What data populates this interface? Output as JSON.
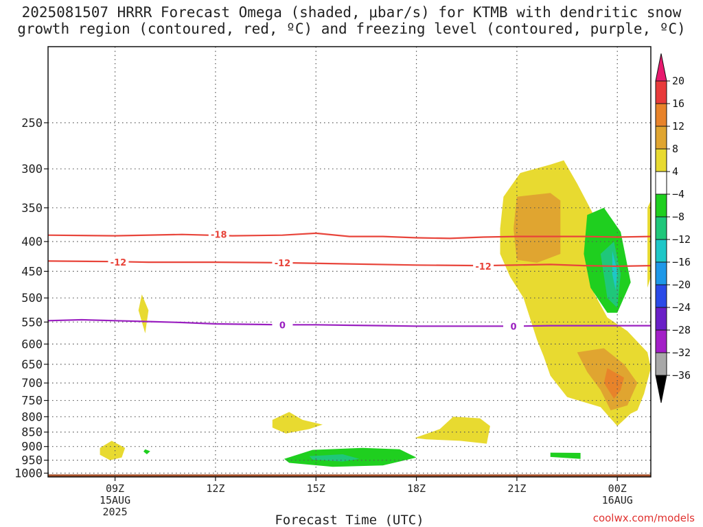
{
  "title_line1": "2025081507 HRRR Forecast Omega (shaded, μbar/s) for KTMB with dendritic snow",
  "title_line2": "growth region (contoured, red, ºC) and freezing level (contoured, purple, ºC)",
  "credit": "coolwx.com/models",
  "chart_data": {
    "type": "heatmap",
    "title": "2025081507 HRRR Forecast Omega (shaded, μbar/s) for KTMB with dendritic snow growth region (contoured, red, ºC) and freezing level (contoured, purple, ºC)",
    "xlabel": "Forecast Time (UTC)",
    "ylabel": "",
    "xlim_hours": [
      7,
      25
    ],
    "ylim_hpa": [
      1015,
      185
    ],
    "y_ticks": [
      250,
      300,
      350,
      400,
      450,
      500,
      550,
      600,
      650,
      700,
      750,
      800,
      850,
      900,
      950,
      1000
    ],
    "x_ticks": [
      {
        "hour": 9,
        "lines": [
          "09Z",
          "15AUG",
          "2025"
        ]
      },
      {
        "hour": 12,
        "lines": [
          "12Z"
        ]
      },
      {
        "hour": 15,
        "lines": [
          "15Z"
        ]
      },
      {
        "hour": 18,
        "lines": [
          "18Z"
        ]
      },
      {
        "hour": 21,
        "lines": [
          "21Z"
        ]
      },
      {
        "hour": 24,
        "lines": [
          "00Z",
          "16AUG"
        ]
      }
    ],
    "colorbar": {
      "labels": [
        "20",
        "16",
        "12",
        "8",
        "4",
        "−4",
        "−8",
        "−12",
        "−16",
        "−20",
        "−24",
        "−28",
        "−32",
        "−36"
      ],
      "colors": [
        "#e8196e",
        "#e83a3a",
        "#e8832a",
        "#e0a530",
        "#e8da30",
        "#ffffff",
        "#1fcf1f",
        "#1fc77a",
        "#1ec7c7",
        "#1e98e8",
        "#2a4ae8",
        "#6a1fc7",
        "#a31fc7",
        "#a8a8a8",
        "#000000"
      ]
    },
    "contours": [
      {
        "label": "-18",
        "color": "#e8443a",
        "points": [
          [
            7,
            390
          ],
          [
            9,
            391
          ],
          [
            11,
            389
          ],
          [
            12.5,
            391
          ],
          [
            14,
            390
          ],
          [
            15,
            387
          ],
          [
            16,
            392
          ],
          [
            17,
            392
          ],
          [
            18,
            394
          ],
          [
            19,
            395
          ],
          [
            20,
            393
          ],
          [
            21,
            392
          ],
          [
            22,
            392
          ],
          [
            23,
            392
          ],
          [
            24,
            393
          ],
          [
            25,
            392
          ]
        ],
        "label_at": [
          [
            12.1,
            389
          ]
        ]
      },
      {
        "label": "-12",
        "color": "#e8443a",
        "points": [
          [
            7,
            432
          ],
          [
            9,
            433
          ],
          [
            10,
            434
          ],
          [
            11,
            434
          ],
          [
            12,
            434
          ],
          [
            14,
            435
          ],
          [
            16,
            437
          ],
          [
            18,
            439
          ],
          [
            20,
            440
          ],
          [
            22,
            438
          ],
          [
            23,
            440
          ],
          [
            24,
            441
          ],
          [
            25,
            440
          ]
        ],
        "label_at": [
          [
            9.1,
            434
          ],
          [
            14.0,
            435
          ],
          [
            20.0,
            441
          ]
        ]
      },
      {
        "label": "0",
        "color": "#9a1fc0",
        "points": [
          [
            7,
            547
          ],
          [
            8,
            545
          ],
          [
            9,
            547
          ],
          [
            10,
            549
          ],
          [
            11,
            551
          ],
          [
            12,
            554
          ],
          [
            13,
            555
          ],
          [
            14,
            556
          ],
          [
            15,
            556
          ],
          [
            16,
            557
          ],
          [
            17,
            558
          ],
          [
            18,
            559
          ],
          [
            19,
            559
          ],
          [
            20,
            559
          ],
          [
            21,
            559
          ],
          [
            22,
            558
          ],
          [
            23,
            558
          ],
          [
            24,
            558
          ],
          [
            25,
            558
          ]
        ],
        "label_at": [
          [
            14.0,
            556
          ],
          [
            20.9,
            559
          ]
        ]
      }
    ],
    "shaded_regions": [
      {
        "omega": 4,
        "points": [
          [
            20.6,
            335
          ],
          [
            21.1,
            305
          ],
          [
            22.0,
            295
          ],
          [
            22.4,
            290
          ],
          [
            22.8,
            318
          ],
          [
            23.4,
            370
          ],
          [
            23.5,
            430
          ],
          [
            23.3,
            490
          ],
          [
            23.7,
            540
          ],
          [
            24.3,
            570
          ],
          [
            24.9,
            620
          ],
          [
            25.0,
            660
          ],
          [
            24.8,
            730
          ],
          [
            24.6,
            780
          ],
          [
            24.4,
            790
          ],
          [
            24.0,
            830
          ],
          [
            23.5,
            770
          ],
          [
            22.5,
            740
          ],
          [
            22.0,
            680
          ],
          [
            21.8,
            630
          ],
          [
            21.6,
            590
          ],
          [
            21.2,
            500
          ],
          [
            20.8,
            460
          ],
          [
            20.5,
            420
          ],
          [
            20.5,
            380
          ]
        ]
      },
      {
        "omega": 8,
        "points": [
          [
            21.0,
            335
          ],
          [
            22.0,
            330
          ],
          [
            22.3,
            340
          ],
          [
            22.3,
            420
          ],
          [
            21.6,
            435
          ],
          [
            21.0,
            430
          ],
          [
            20.9,
            380
          ]
        ]
      },
      {
        "omega": 8,
        "points": [
          [
            22.8,
            620
          ],
          [
            23.6,
            610
          ],
          [
            24.2,
            650
          ],
          [
            24.6,
            700
          ],
          [
            24.3,
            765
          ],
          [
            23.8,
            780
          ],
          [
            23.5,
            720
          ],
          [
            23.1,
            670
          ]
        ]
      },
      {
        "omega": 12,
        "points": [
          [
            23.7,
            660
          ],
          [
            24.2,
            685
          ],
          [
            24.1,
            720
          ],
          [
            23.9,
            745
          ],
          [
            23.6,
            700
          ]
        ]
      },
      {
        "omega": 4,
        "points": [
          [
            24.9,
            350
          ],
          [
            25.0,
            340
          ],
          [
            25.0,
            460
          ],
          [
            24.9,
            480
          ]
        ]
      },
      {
        "omega": 4,
        "points": [
          [
            9.8,
            493
          ],
          [
            10.0,
            525
          ],
          [
            9.9,
            575
          ],
          [
            9.7,
            525
          ]
        ]
      },
      {
        "omega": 4,
        "points": [
          [
            8.55,
            905
          ],
          [
            8.9,
            880
          ],
          [
            9.3,
            905
          ],
          [
            9.2,
            940
          ],
          [
            8.85,
            950
          ],
          [
            8.55,
            930
          ]
        ]
      },
      {
        "omega": 4,
        "points": [
          [
            13.7,
            810
          ],
          [
            14.2,
            785
          ],
          [
            14.6,
            810
          ],
          [
            15.2,
            825
          ],
          [
            14.8,
            840
          ],
          [
            14.1,
            855
          ],
          [
            13.7,
            835
          ]
        ]
      },
      {
        "omega": 4,
        "points": [
          [
            17.95,
            870
          ],
          [
            18.7,
            840
          ],
          [
            19.1,
            800
          ],
          [
            19.9,
            805
          ],
          [
            20.2,
            830
          ],
          [
            20.1,
            890
          ],
          [
            19.3,
            880
          ],
          [
            18.3,
            875
          ]
        ]
      },
      {
        "omega": -4,
        "points": [
          [
            14.05,
            945
          ],
          [
            14.9,
            912
          ],
          [
            16.4,
            905
          ],
          [
            17.5,
            910
          ],
          [
            18.0,
            940
          ],
          [
            17.0,
            970
          ],
          [
            15.5,
            975
          ],
          [
            14.2,
            960
          ]
        ]
      },
      {
        "omega": -8,
        "points": [
          [
            14.8,
            935
          ],
          [
            15.8,
            928
          ],
          [
            16.3,
            945
          ],
          [
            15.8,
            955
          ],
          [
            14.9,
            948
          ]
        ]
      },
      {
        "omega": -4,
        "points": [
          [
            9.9,
            910
          ],
          [
            10.05,
            917
          ],
          [
            9.95,
            928
          ],
          [
            9.85,
            918
          ]
        ]
      },
      {
        "omega": -4,
        "points": [
          [
            22.0,
            922
          ],
          [
            22.9,
            923
          ],
          [
            22.9,
            945
          ],
          [
            22.0,
            938
          ]
        ]
      },
      {
        "omega": -4,
        "points": [
          [
            23.1,
            360
          ],
          [
            23.6,
            350
          ],
          [
            24.1,
            385
          ],
          [
            24.4,
            470
          ],
          [
            24.0,
            530
          ],
          [
            23.7,
            530
          ],
          [
            23.2,
            480
          ],
          [
            23.0,
            420
          ]
        ]
      },
      {
        "omega": -8,
        "points": [
          [
            23.5,
            420
          ],
          [
            23.9,
            400
          ],
          [
            24.1,
            455
          ],
          [
            24.0,
            520
          ],
          [
            23.7,
            500
          ]
        ]
      },
      {
        "omega": -12,
        "points": [
          [
            23.85,
            415
          ],
          [
            24.0,
            450
          ],
          [
            23.95,
            485
          ],
          [
            23.85,
            455
          ]
        ]
      }
    ],
    "ground": {
      "color": "#a34e27",
      "pressure_hpa": 1005
    }
  }
}
